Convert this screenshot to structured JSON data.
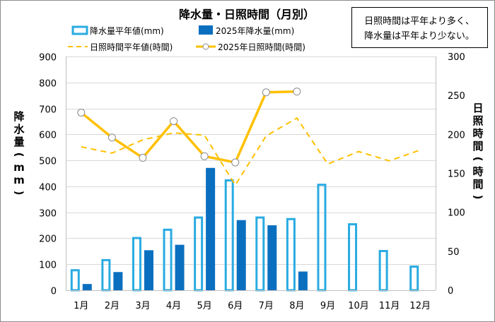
{
  "chart_data": {
    "type": "bar",
    "title": "降水量・日照時間（月別）",
    "categories": [
      "1月",
      "2月",
      "3月",
      "4月",
      "5月",
      "6月",
      "7月",
      "8月",
      "9月",
      "10月",
      "11月",
      "12月"
    ],
    "ylabel": "降水量(mm)",
    "ylabel_display": [
      "降",
      "水",
      "量",
      "(",
      "m",
      "m",
      ")"
    ],
    "y2label": "日照時間(時間)",
    "y2label_display": [
      "日",
      "照",
      "時",
      "間",
      "(",
      "時",
      "間",
      ")"
    ],
    "ylim": [
      0,
      900
    ],
    "yticks": [
      0,
      100,
      200,
      300,
      400,
      500,
      600,
      700,
      800,
      900
    ],
    "y2lim": [
      0,
      300
    ],
    "y2ticks": [
      0,
      50,
      100,
      150,
      200,
      250,
      300
    ],
    "grid": true,
    "legend_position": "top",
    "annotation": [
      "日照時間は平年より多く、",
      "降水量は平年より少ない。"
    ],
    "series": [
      {
        "name": "降水量平年値(mm)",
        "type": "bar",
        "style": "outline",
        "axis": "left",
        "color": "#29abe2",
        "values": [
          81,
          120,
          205,
          237,
          284,
          427,
          284,
          278,
          410,
          258,
          155,
          95
        ]
      },
      {
        "name": "2025年降水量(mm)",
        "type": "bar",
        "style": "filled",
        "axis": "left",
        "color": "#0b6fc0",
        "values": [
          24,
          70,
          154,
          175,
          471,
          270,
          250,
          72,
          null,
          null,
          null,
          null
        ]
      },
      {
        "name": "日照時間平年値(時間)",
        "type": "line",
        "style": "dashed",
        "axis": "right",
        "color": "#ffc000",
        "values": [
          184,
          176,
          193,
          202,
          199,
          135,
          198,
          221,
          162,
          178,
          166,
          180
        ]
      },
      {
        "name": "2025年日照時間(時間)",
        "type": "line",
        "style": "solid-markers",
        "axis": "right",
        "color": "#ffc000",
        "values": [
          228,
          196,
          170,
          217,
          172,
          164,
          254,
          255,
          null,
          null,
          null,
          null
        ]
      }
    ]
  }
}
